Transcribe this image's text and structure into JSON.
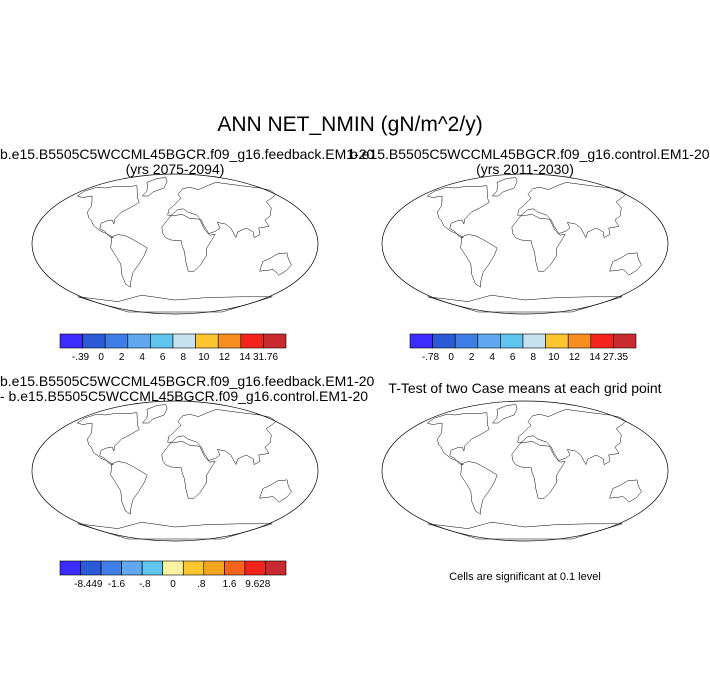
{
  "main_title": "ANN NET_NMIN (gN/m^2/y)",
  "panels": {
    "p1": {
      "title1": "b.e15.B5505C5WCCML45BGCR.f09_g16.feedback.EM1-20",
      "title2": "(yrs 2075-2094)"
    },
    "p2": {
      "title1": "b.e15.B5505C5WCCML45BGCR.f09_g16.control.EM1-20",
      "title2": "(yrs 2011-2030)"
    },
    "p3": {
      "title1": "b.e15.B5505C5WCCML45BGCR.f09_g16.feedback.EM1-20",
      "title2": "- b.e15.B5505C5WCCML45BGCR.f09_g16.control.EM1-20"
    },
    "p4": {
      "title1": "T-Test of two Case means at each grid point",
      "note": "Cells are significant at 0.1 level"
    }
  },
  "chart_data": [
    {
      "type": "heatmap",
      "title": "b.e15.B5505C5WCCML45BGCR.f09_g16.feedback.EM1-20",
      "subtitle": "(yrs 2075-2094)",
      "colorbar_labels": [
        "-.39",
        "0",
        "2",
        "4",
        "6",
        "8",
        "10",
        "12",
        "14",
        "31.76"
      ],
      "colorbar_colors": [
        "#3d2cff",
        "#2b5ad6",
        "#3f7ee6",
        "#60a9f0",
        "#5fc4ee",
        "#c6e2f1",
        "#fdc52f",
        "#f78f1e",
        "#f4231b",
        "#c82a2f"
      ]
    },
    {
      "type": "heatmap",
      "title": "b.e15.B5505C5WCCML45BGCR.f09_g16.control.EM1-20",
      "subtitle": "(yrs 2011-2030)",
      "colorbar_labels": [
        "-.78",
        "0",
        "2",
        "4",
        "6",
        "8",
        "10",
        "12",
        "14",
        "27.35"
      ],
      "colorbar_colors": [
        "#3d2cff",
        "#2b5ad6",
        "#3f7ee6",
        "#60a9f0",
        "#5fc4ee",
        "#c6e2f1",
        "#fdc52f",
        "#f78f1e",
        "#f4231b",
        "#c82a2f"
      ]
    },
    {
      "type": "heatmap",
      "title": "b.e15.B5505C5WCCML45BGCR.f09_g16.feedback.EM1-20 - b.e15.B5505C5WCCML45BGCR.f09_g16.control.EM1-20",
      "colorbar_labels": [
        "-8.449",
        "-1.6",
        "-.8",
        "0",
        ".8",
        "1.6",
        "9.628"
      ],
      "colorbar_colors": [
        "#3d2cff",
        "#2b5ad6",
        "#3f7ee6",
        "#60a9f0",
        "#5fc4ee",
        "#fbf2a2",
        "#fdc52f",
        "#f7a41e",
        "#f4631b",
        "#f4231b",
        "#c82a2f"
      ]
    },
    {
      "type": "heatmap",
      "title": "T-Test of two Case means at each grid point",
      "annotation": "Cells are significant at 0.1 level",
      "colors": [
        "#e8141b",
        "#ffffff"
      ]
    }
  ]
}
